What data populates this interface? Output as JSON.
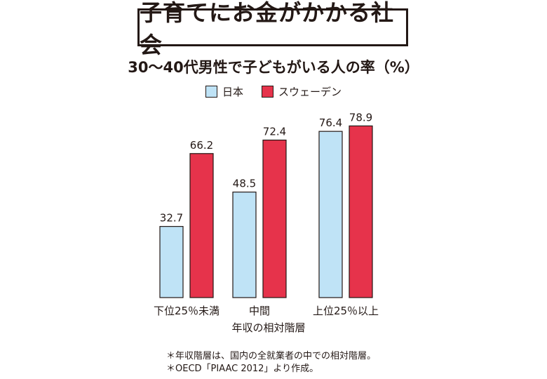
{
  "title": "子育てにお金がかかる社会",
  "subtitle": "30〜40代男性で子どもがいる人の率（%）",
  "colors": {
    "japan": "#bfe3f6",
    "sweden": "#e6334b",
    "text": "#231815"
  },
  "chart_data": {
    "type": "bar",
    "categories": [
      "下位25％未満",
      "中間",
      "上位25％以上"
    ],
    "series": [
      {
        "name": "日本",
        "values": [
          32.7,
          48.5,
          76.4
        ]
      },
      {
        "name": "スウェーデン",
        "values": [
          66.2,
          72.4,
          78.9
        ]
      }
    ],
    "xlabel": "年収の相対階層",
    "ylabel": "",
    "ylim": [
      0,
      100
    ],
    "grid": false,
    "legend": "top-center",
    "data_labels": true
  },
  "footnotes": [
    "＊年収階層は、国内の全就業者の中での相対階層。",
    "＊OECD「PIAAC 2012」より作成。"
  ]
}
